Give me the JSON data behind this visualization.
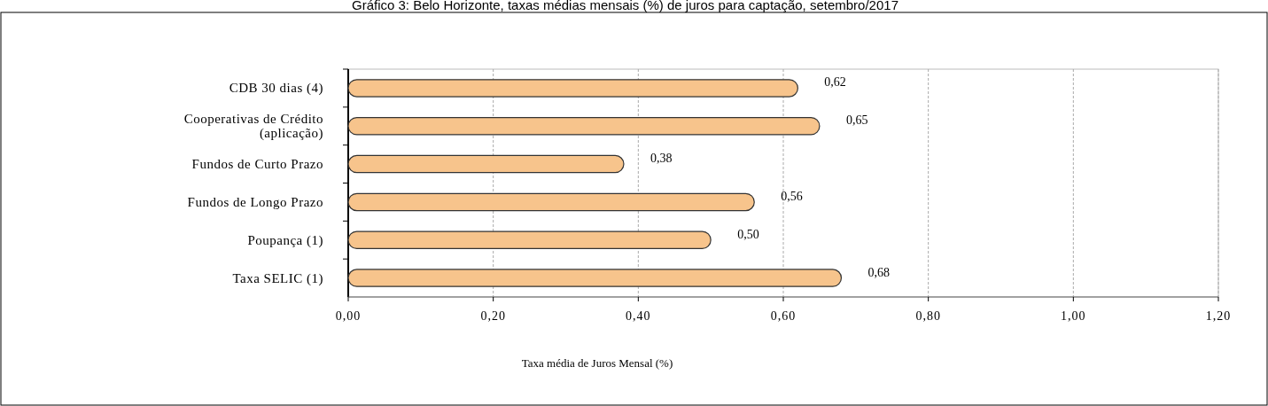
{
  "chart_data": {
    "type": "bar",
    "orientation": "horizontal",
    "title": "Gráfico 3: Belo Horizonte, taxas médias mensais (%) de juros para captação, setembro/2017",
    "xlabel": "Taxa média de Juros Mensal (%)",
    "categories": [
      "CDB 30 dias (4)",
      "Cooperativas de Crédito\n(aplicação)",
      "Fundos de Curto Prazo",
      "Fundos de Longo Prazo",
      "Poupança (1)",
      "Taxa SELIC  (1)"
    ],
    "values": [
      0.62,
      0.65,
      0.38,
      0.56,
      0.5,
      0.68
    ],
    "value_labels": [
      "0,62",
      "0,65",
      "0,38",
      "0,56",
      "0,50",
      "0,68"
    ],
    "color": "#f7c48c",
    "xlim": [
      0,
      1.2
    ],
    "xticks": [
      {
        "value": 0,
        "label": "0,00"
      },
      {
        "value": 0.2,
        "label": "0,20"
      },
      {
        "value": 0.4,
        "label": "0,40"
      },
      {
        "value": 0.6,
        "label": "0,60"
      },
      {
        "value": 0.8,
        "label": "0,80"
      },
      {
        "value": 1.0,
        "label": "1,00"
      },
      {
        "value": 1.2,
        "label": "1,20"
      }
    ],
    "grid": "x"
  }
}
